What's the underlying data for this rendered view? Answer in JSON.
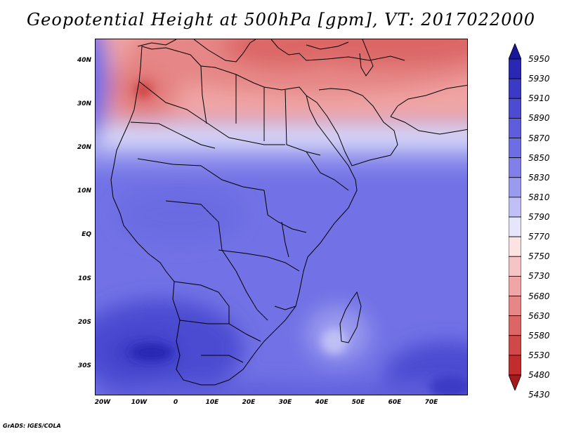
{
  "title": "Geopotential Height at 500hPa [gpm], VT: 2017022000",
  "credit": "GrADS: IGES/COLA",
  "axes": {
    "lat_ticks": [
      "40N",
      "30N",
      "20N",
      "10N",
      "EQ",
      "10S",
      "20S",
      "30S"
    ],
    "lon_ticks": [
      "20W",
      "10W",
      "0",
      "10E",
      "20E",
      "30E",
      "40E",
      "50E",
      "60E",
      "70E"
    ]
  },
  "colorbar": {
    "levels": [
      "5950",
      "5930",
      "5910",
      "5890",
      "5870",
      "5850",
      "5830",
      "5810",
      "5790",
      "5770",
      "5750",
      "5730",
      "5680",
      "5630",
      "5580",
      "5530",
      "5480",
      "5430"
    ],
    "colors": [
      "#17179a",
      "#2828b4",
      "#3a3ac6",
      "#4c4cd2",
      "#5e5edc",
      "#6e6ee4",
      "#8080e8",
      "#9a9aee",
      "#c0c0f6",
      "#e6e6fb",
      "#fbe3e3",
      "#f6c4c4",
      "#f0a6a6",
      "#e68686",
      "#dc6666",
      "#d04848",
      "#c22c2c",
      "#a81a1a"
    ]
  }
}
